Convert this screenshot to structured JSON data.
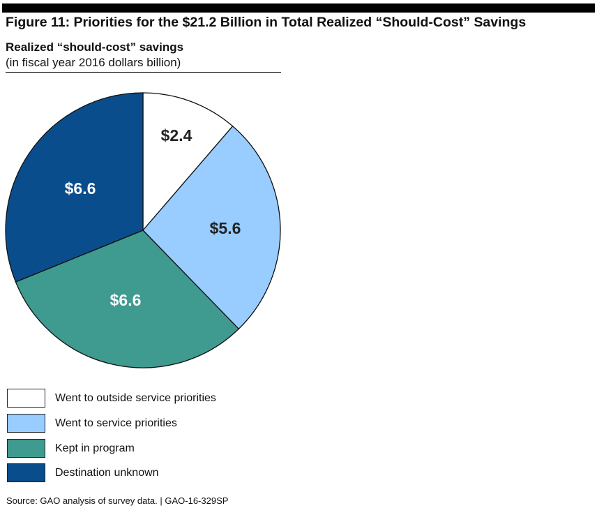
{
  "chart_data": {
    "type": "pie",
    "title": "Figure 11: Priorities for the $21.2 Billion in Total Realized “Should-Cost” Savings",
    "subtitle": "Realized “should-cost” savings",
    "unit_note": "(in fiscal year 2016 dollars billion)",
    "slices": [
      {
        "name": "Went to outside service priorities",
        "value": 2.4,
        "label": "$2.4",
        "color": "#ffffff",
        "label_color": "#222222"
      },
      {
        "name": "Went to service priorities",
        "value": 5.6,
        "label": "$5.6",
        "color": "#99ccff",
        "label_color": "#222222"
      },
      {
        "name": "Kept in program",
        "value": 6.6,
        "label": "$6.6",
        "color": "#3f9a8f",
        "label_color": "#ffffff"
      },
      {
        "name": "Destination unknown",
        "value": 6.6,
        "label": "$6.6",
        "color": "#0a4d8c",
        "label_color": "#ffffff"
      }
    ],
    "start": "top",
    "direction": "clockwise",
    "legend_placement": "bottom-left"
  },
  "source": "Source: GAO analysis of survey data.  |  GAO-16-329SP"
}
